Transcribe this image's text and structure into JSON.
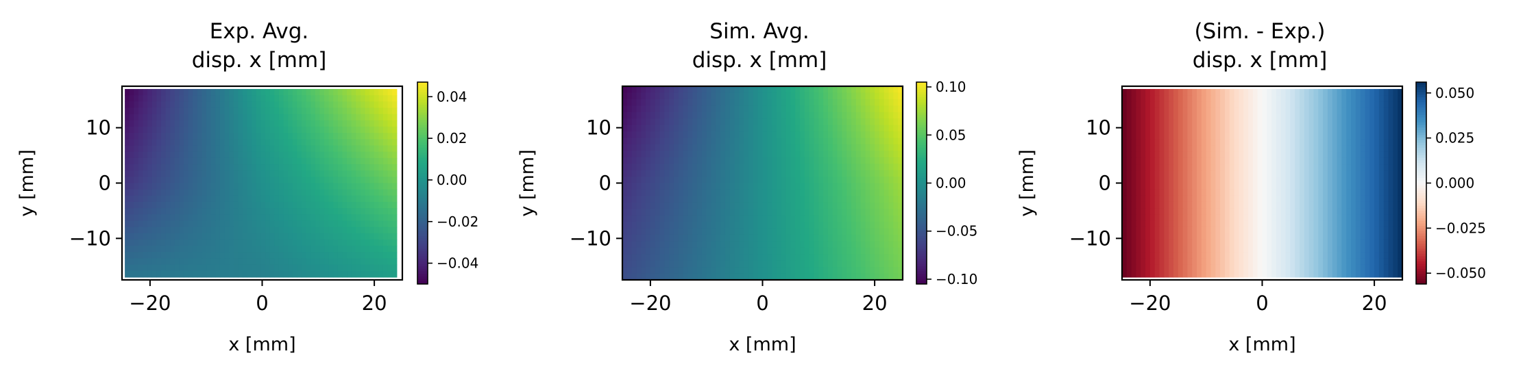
{
  "chart_data": [
    {
      "type": "heatmap",
      "title_line1": "Exp. Avg.",
      "title_line2": "disp. x [mm]",
      "xlabel": "x [mm]",
      "ylabel": "y [mm]",
      "xlim": [
        -25,
        25
      ],
      "ylim": [
        -17.5,
        17.5
      ],
      "data_extent": {
        "x": [
          -24.5,
          24
        ],
        "y": [
          -17,
          17
        ]
      },
      "xticks": [
        -20,
        0,
        20
      ],
      "xtick_labels": [
        "−20",
        "0",
        "20"
      ],
      "yticks": [
        -10,
        0,
        10
      ],
      "ytick_labels": [
        "−10",
        "0",
        "10"
      ],
      "colormap": "viridis",
      "color_range": [
        -0.05,
        0.047
      ],
      "field": {
        "x": [
          -24.5,
          0,
          24
        ],
        "y": [
          -17,
          0,
          17
        ],
        "values": [
          [
            -0.012,
            -0.008,
            0.004
          ],
          [
            -0.035,
            -0.002,
            0.025
          ],
          [
            -0.05,
            0.006,
            0.047
          ]
        ]
      },
      "colorbar_ticks": [
        -0.04,
        -0.02,
        0.0,
        0.02,
        0.04
      ],
      "colorbar_tick_labels": [
        "−0.04",
        "−0.02",
        "0.00",
        "0.02",
        "0.04"
      ]
    },
    {
      "type": "heatmap",
      "title_line1": "Sim. Avg.",
      "title_line2": "disp. x [mm]",
      "xlabel": "x [mm]",
      "ylabel": "y [mm]",
      "xlim": [
        -25,
        25
      ],
      "ylim": [
        -17.5,
        17.5
      ],
      "data_extent": {
        "x": [
          -25,
          25
        ],
        "y": [
          -17.5,
          17.5
        ]
      },
      "xticks": [
        -20,
        0,
        20
      ],
      "xtick_labels": [
        "−20",
        "0",
        "20"
      ],
      "yticks": [
        -10,
        0,
        10
      ],
      "ytick_labels": [
        "−10",
        "0",
        "10"
      ],
      "colormap": "viridis",
      "color_range": [
        -0.105,
        0.105
      ],
      "field": {
        "x": [
          -25,
          0,
          25
        ],
        "y": [
          -17.5,
          0,
          17.5
        ],
        "values": [
          [
            -0.055,
            0.0,
            0.06
          ],
          [
            -0.075,
            0.0,
            0.075
          ],
          [
            -0.105,
            0.0,
            0.105
          ]
        ]
      },
      "colorbar_ticks": [
        -0.1,
        -0.05,
        0.0,
        0.05,
        0.1
      ],
      "colorbar_tick_labels": [
        "−0.10",
        "−0.05",
        "0.00",
        "0.05",
        "0.10"
      ]
    },
    {
      "type": "heatmap",
      "title_line1": "(Sim. - Exp.)",
      "title_line2": "disp. x [mm]",
      "xlabel": "x [mm]",
      "ylabel": "y [mm]",
      "xlim": [
        -25,
        25
      ],
      "ylim": [
        -17.5,
        17.5
      ],
      "data_extent": {
        "x": [
          -25,
          25
        ],
        "y": [
          -17,
          17
        ]
      },
      "xticks": [
        -20,
        0,
        20
      ],
      "xtick_labels": [
        "−20",
        "0",
        "20"
      ],
      "yticks": [
        -10,
        0,
        10
      ],
      "ytick_labels": [
        "−10",
        "0",
        "10"
      ],
      "colormap": "RdBu",
      "color_range": [
        -0.056,
        0.056
      ],
      "field": {
        "x": [
          -25,
          0,
          25
        ],
        "y": [
          -17,
          0,
          17
        ],
        "values": [
          [
            -0.056,
            0.0,
            0.056
          ],
          [
            -0.056,
            0.0,
            0.056
          ],
          [
            -0.056,
            0.0,
            0.056
          ]
        ]
      },
      "colorbar_ticks": [
        -0.05,
        -0.025,
        0.0,
        0.025,
        0.05
      ],
      "colorbar_tick_labels": [
        "−0.050",
        "−0.025",
        "0.000",
        "0.025",
        "0.050"
      ]
    }
  ]
}
